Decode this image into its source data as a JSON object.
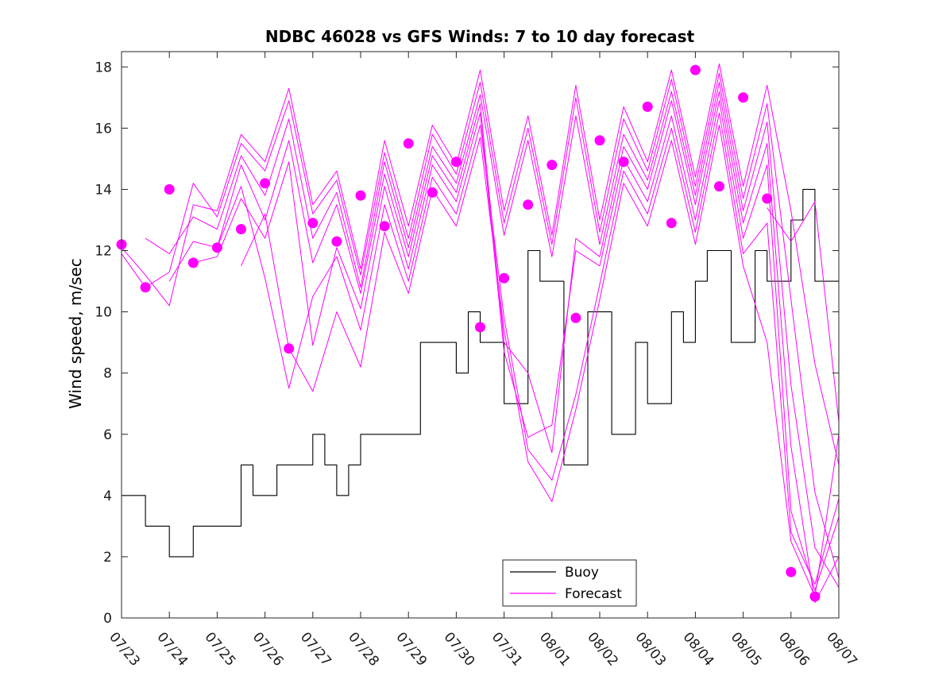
{
  "chart_data": {
    "type": "line",
    "title": "NDBC 46028 vs GFS Winds: 7 to 10 day forecast",
    "xlabel": "",
    "ylabel": "Wind speed, m/sec",
    "xlim": [
      "2023-07-23",
      "2023-08-07"
    ],
    "ylim": [
      0,
      18.5
    ],
    "x_tick_labels": [
      "07/23",
      "07/24",
      "07/25",
      "07/26",
      "07/27",
      "07/28",
      "07/29",
      "07/30",
      "07/31",
      "08/01",
      "08/02",
      "08/03",
      "08/04",
      "08/05",
      "08/06",
      "08/07"
    ],
    "y_tick_labels": [
      "0",
      "2",
      "4",
      "6",
      "8",
      "10",
      "12",
      "14",
      "16",
      "18"
    ],
    "grid": false,
    "legend": {
      "position": "bottom-center",
      "entries": [
        "Buoy",
        "Forecast"
      ]
    },
    "colors": {
      "buoy": "#000000",
      "forecast": "#ff00ff"
    },
    "series": [
      {
        "name": "Buoy",
        "style": "step",
        "x": [
          "07/23 00:00",
          "07/23 06:00",
          "07/23 12:00",
          "07/23 18:00",
          "07/24 00:00",
          "07/24 06:00",
          "07/24 12:00",
          "07/24 18:00",
          "07/25 00:00",
          "07/25 06:00",
          "07/25 12:00",
          "07/25 18:00",
          "07/26 00:00",
          "07/26 06:00",
          "07/26 12:00",
          "07/26 18:00",
          "07/27 00:00",
          "07/27 06:00",
          "07/27 12:00",
          "07/27 18:00",
          "07/28 00:00",
          "07/28 06:00",
          "07/28 12:00",
          "07/28 18:00",
          "07/29 00:00",
          "07/29 06:00",
          "07/29 12:00",
          "07/29 18:00",
          "07/30 00:00",
          "07/30 06:00",
          "07/30 12:00",
          "07/30 18:00",
          "07/31 00:00",
          "07/31 06:00",
          "07/31 12:00",
          "07/31 18:00",
          "08/01 00:00",
          "08/01 06:00",
          "08/01 12:00",
          "08/01 18:00",
          "08/02 00:00",
          "08/02 06:00",
          "08/02 12:00",
          "08/02 18:00",
          "08/03 00:00",
          "08/03 06:00",
          "08/03 12:00",
          "08/03 18:00",
          "08/04 00:00",
          "08/04 06:00",
          "08/04 12:00",
          "08/04 18:00",
          "08/05 00:00",
          "08/05 06:00",
          "08/05 12:00",
          "08/05 18:00",
          "08/06 00:00",
          "08/06 06:00",
          "08/06 12:00"
        ],
        "values": [
          4,
          4,
          3,
          3,
          2,
          2,
          3,
          3,
          3,
          3,
          5,
          4,
          4,
          5,
          5,
          5,
          6,
          5,
          4,
          5,
          6,
          6,
          6,
          6,
          6,
          9,
          9,
          9,
          8,
          10,
          9,
          9,
          7,
          7,
          12,
          11,
          11,
          5,
          5,
          10,
          10,
          6,
          6,
          9,
          7,
          7,
          10,
          9,
          11,
          12,
          12,
          9,
          9,
          12,
          11,
          11,
          13,
          14,
          11
        ]
      },
      {
        "name": "Forecast",
        "style": "line",
        "x": [
          "07/23 00:00",
          "07/23 12:00",
          "07/24 00:00",
          "07/24 12:00",
          "07/25 00:00",
          "07/25 12:00",
          "07/26 00:00",
          "07/26 12:00",
          "07/27 00:00",
          "07/27 12:00",
          "07/28 00:00",
          "07/28 12:00",
          "07/29 00:00",
          "07/29 12:00",
          "07/30 00:00",
          "07/30 12:00",
          "07/31 00:00",
          "07/31 12:00",
          "08/01 00:00",
          "08/01 12:00",
          "08/02 00:00",
          "08/02 12:00",
          "08/03 00:00",
          "08/03 12:00",
          "08/04 00:00",
          "08/04 12:00",
          "08/05 00:00",
          "08/05 12:00",
          "08/06 00:00",
          "08/06 12:00",
          "08/07 00:00"
        ],
        "values": [
          12.1,
          11.2,
          10.2,
          13.5,
          13.3,
          15.8,
          14.9,
          17.3,
          13.5,
          14.6,
          11.4,
          15.6,
          12.8,
          16.1,
          14.8,
          17.9,
          13.3,
          16.4,
          12.5,
          17.4,
          13.0,
          16.7,
          14.9,
          17.9,
          14.4,
          18.1,
          14.1,
          17.4,
          13.3,
          8.3,
          5.0
        ]
      },
      {
        "name": "Forecast",
        "style": "line",
        "x": [
          "07/23 00:00",
          "07/23 12:00",
          "07/24 00:00",
          "07/24 12:00",
          "07/25 00:00",
          "07/25 12:00",
          "07/26 00:00",
          "07/26 12:00",
          "07/27 00:00",
          "07/27 12:00",
          "07/28 00:00",
          "07/28 12:00",
          "07/29 00:00",
          "07/29 12:00",
          "07/30 00:00",
          "07/30 12:00",
          "07/31 00:00",
          "07/31 12:00",
          "08/01 00:00",
          "08/01 12:00",
          "08/02 00:00",
          "08/02 12:00",
          "08/03 00:00",
          "08/03 12:00",
          "08/04 00:00",
          "08/04 12:00",
          "08/05 00:00",
          "08/05 12:00",
          "08/06 00:00",
          "08/06 12:00",
          "08/07 00:00"
        ],
        "values": [
          11.9,
          10.8,
          11.3,
          14.2,
          13.1,
          15.5,
          14.6,
          16.9,
          13.2,
          14.3,
          11.2,
          15.2,
          12.4,
          15.8,
          14.5,
          17.5,
          12.9,
          16.0,
          12.2,
          17.0,
          12.6,
          16.3,
          14.6,
          17.6,
          14.1,
          17.8,
          13.7,
          16.8,
          10.4,
          4.1,
          1.3
        ]
      },
      {
        "name": "Forecast",
        "style": "line",
        "x": [
          "07/23 12:00",
          "07/24 00:00",
          "07/24 12:00",
          "07/25 00:00",
          "07/25 12:00",
          "07/26 00:00",
          "07/26 12:00",
          "07/27 00:00",
          "07/27 12:00",
          "07/28 00:00",
          "07/28 12:00",
          "07/29 00:00",
          "07/29 12:00",
          "07/30 00:00",
          "07/30 12:00",
          "07/31 00:00",
          "07/31 12:00",
          "08/01 00:00",
          "08/01 12:00",
          "08/02 00:00",
          "08/02 12:00",
          "08/03 00:00",
          "08/03 12:00",
          "08/04 00:00",
          "08/04 12:00",
          "08/05 00:00",
          "08/05 12:00",
          "08/06 00:00",
          "08/06 12:00",
          "08/07 00:00"
        ],
        "values": [
          12.4,
          11.9,
          13.1,
          12.7,
          15.1,
          13.8,
          16.3,
          12.4,
          13.9,
          10.8,
          14.9,
          12.1,
          15.4,
          14.2,
          17.1,
          12.5,
          15.6,
          11.8,
          16.4,
          12.2,
          15.8,
          14.3,
          17.2,
          13.8,
          17.5,
          13.3,
          16.2,
          7.6,
          2.3,
          1.0
        ]
      },
      {
        "name": "Forecast",
        "style": "line",
        "x": [
          "07/24 00:00",
          "07/24 12:00",
          "07/25 00:00",
          "07/25 12:00",
          "07/26 00:00",
          "07/26 12:00",
          "07/27 00:00",
          "07/27 12:00",
          "07/28 00:00",
          "07/28 12:00",
          "07/29 00:00",
          "07/29 12:00",
          "07/30 00:00",
          "07/30 12:00",
          "07/31 00:00",
          "07/31 12:00",
          "08/01 00:00",
          "08/01 12:00",
          "08/02 00:00",
          "08/02 12:00",
          "08/03 00:00",
          "08/03 12:00",
          "08/04 00:00",
          "08/04 12:00",
          "08/05 00:00",
          "08/05 12:00",
          "08/06 00:00",
          "08/06 12:00",
          "08/07 00:00"
        ],
        "values": [
          11.0,
          12.3,
          12.1,
          14.8,
          13.0,
          15.6,
          11.6,
          13.5,
          10.6,
          14.5,
          11.8,
          15.1,
          13.9,
          16.8,
          9.0,
          8.0,
          5.4,
          12.4,
          11.8,
          15.4,
          14.0,
          16.9,
          13.5,
          17.2,
          12.9,
          15.5,
          5.6,
          0.5,
          2.0
        ]
      },
      {
        "name": "Forecast",
        "style": "line",
        "x": [
          "07/24 12:00",
          "07/25 00:00",
          "07/25 12:00",
          "07/26 00:00",
          "07/26 12:00",
          "07/27 00:00",
          "07/27 12:00",
          "07/28 00:00",
          "07/28 12:00",
          "07/29 00:00",
          "07/29 12:00",
          "07/30 00:00",
          "07/30 12:00",
          "07/31 00:00",
          "07/31 12:00",
          "08/01 00:00",
          "08/01 12:00",
          "08/02 00:00",
          "08/02 12:00",
          "08/03 00:00",
          "08/03 12:00",
          "08/04 00:00",
          "08/04 12:00",
          "08/05 00:00",
          "08/05 12:00",
          "08/06 00:00",
          "08/06 12:00",
          "08/07 00:00"
        ],
        "values": [
          11.6,
          11.8,
          13.7,
          12.4,
          14.9,
          8.9,
          12.1,
          10.1,
          14.1,
          11.4,
          14.8,
          13.6,
          16.5,
          8.7,
          5.9,
          6.3,
          12.0,
          11.5,
          15.0,
          13.6,
          16.4,
          13.0,
          16.9,
          12.4,
          14.8,
          3.5,
          0.9,
          3.3
        ]
      },
      {
        "name": "Forecast",
        "style": "line",
        "x": [
          "07/25 00:00",
          "07/25 12:00",
          "07/26 00:00",
          "07/26 12:00",
          "07/27 00:00",
          "07/27 12:00",
          "07/28 00:00",
          "07/28 12:00",
          "07/29 00:00",
          "07/29 12:00",
          "07/30 00:00",
          "07/30 12:00",
          "07/31 00:00",
          "07/31 12:00",
          "08/01 00:00",
          "08/01 12:00",
          "08/02 00:00",
          "08/02 12:00",
          "08/03 00:00",
          "08/03 12:00",
          "08/04 00:00",
          "08/04 12:00",
          "08/05 00:00",
          "08/05 12:00",
          "08/06 00:00",
          "08/06 12:00",
          "08/07 00:00"
        ],
        "values": [
          12.1,
          14.1,
          11.1,
          7.5,
          10.5,
          11.8,
          9.4,
          13.5,
          11.0,
          14.4,
          13.2,
          16.1,
          9.8,
          5.5,
          4.5,
          7.3,
          10.9,
          14.6,
          13.2,
          16.0,
          12.6,
          16.5,
          11.9,
          12.9,
          2.8,
          1.1,
          3.9
        ]
      },
      {
        "name": "Forecast",
        "style": "line",
        "x": [
          "07/25 12:00",
          "07/26 00:00",
          "07/26 12:00",
          "07/27 00:00",
          "07/27 12:00",
          "07/28 00:00",
          "07/28 12:00",
          "07/29 00:00",
          "07/29 12:00",
          "07/30 00:00",
          "07/30 12:00",
          "07/31 00:00",
          "07/31 12:00",
          "08/01 00:00",
          "08/01 12:00",
          "08/02 00:00",
          "08/02 12:00",
          "08/03 00:00",
          "08/03 12:00",
          "08/04 00:00",
          "08/04 12:00",
          "08/05 00:00",
          "08/05 12:00",
          "08/06 00:00",
          "08/06 12:00",
          "08/07 00:00"
        ],
        "values": [
          11.5,
          13.2,
          8.8,
          7.4,
          10.0,
          8.2,
          12.6,
          10.6,
          14.0,
          12.8,
          15.7,
          9.4,
          5.1,
          3.8,
          6.8,
          10.4,
          14.2,
          12.8,
          15.6,
          12.2,
          16.1,
          11.5,
          9.0,
          2.5,
          0.7,
          6.0
        ]
      },
      {
        "name": "Forecast",
        "style": "line",
        "x": [
          "08/05 12:00",
          "08/06 00:00",
          "08/06 12:00",
          "08/07 00:00"
        ],
        "values": [
          13.4,
          12.3,
          13.6,
          6.4
        ]
      }
    ],
    "forecast_markers": {
      "x": [
        "07/23 00:00",
        "07/23 12:00",
        "07/24 00:00",
        "07/24 12:00",
        "07/25 00:00",
        "07/25 12:00",
        "07/26 00:00",
        "07/26 12:00",
        "07/27 00:00",
        "07/27 12:00",
        "07/28 00:00",
        "07/28 12:00",
        "07/29 00:00",
        "07/29 12:00",
        "07/30 00:00",
        "07/30 12:00",
        "07/31 00:00",
        "07/31 12:00",
        "08/01 00:00",
        "08/01 12:00",
        "08/02 00:00",
        "08/02 12:00",
        "08/03 00:00",
        "08/03 12:00",
        "08/04 00:00",
        "08/04 12:00",
        "08/05 00:00",
        "08/05 12:00",
        "08/06 00:00",
        "08/06 12:00"
      ],
      "values": [
        12.2,
        10.8,
        14.0,
        11.6,
        12.1,
        12.7,
        14.2,
        8.8,
        12.9,
        12.3,
        13.8,
        12.8,
        15.5,
        13.9,
        14.9,
        9.5,
        11.1,
        13.5,
        14.8,
        9.8,
        15.6,
        14.9,
        16.7,
        12.9,
        17.9,
        14.1,
        17.0,
        13.7,
        1.5,
        0.7
      ]
    }
  }
}
